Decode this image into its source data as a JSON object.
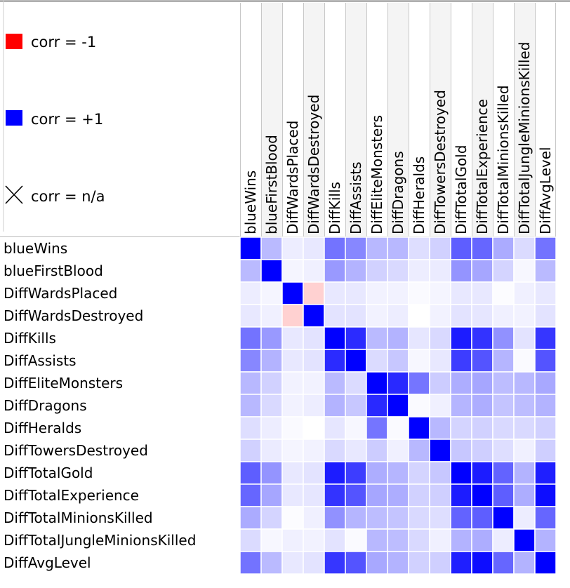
{
  "legend": {
    "items": [
      {
        "label": "corr = -1",
        "color": "#ff0000",
        "icon": "red-square-icon"
      },
      {
        "label": "corr = +1",
        "color": "#0000ff",
        "icon": "blue-square-icon"
      },
      {
        "label": "corr = n/a",
        "color": "#000000",
        "icon": "cross-icon"
      }
    ]
  },
  "chart_data": {
    "type": "heatmap",
    "variables": [
      "blueWins",
      "blueFirstBlood",
      "DiffWardsPlaced",
      "DiffWardsDestroyed",
      "DiffKills",
      "DiffAssists",
      "DiffEliteMonsters",
      "DiffDragons",
      "DiffHeralds",
      "DiffTowersDestroyed",
      "DiffTotalGold",
      "DiffTotalExperience",
      "DiffTotalMinionsKilled",
      "DiffTotalJungleMinionsKilled",
      "DiffAvgLevel"
    ],
    "color_scale": {
      "negative": "#ff0000",
      "zero": "#ffffff",
      "positive": "#0000ff",
      "min": -1,
      "max": 1
    },
    "matrix": [
      [
        1.0,
        0.27,
        0.07,
        0.09,
        0.55,
        0.47,
        0.28,
        0.28,
        0.13,
        0.18,
        0.63,
        0.6,
        0.33,
        0.14,
        0.55
      ],
      [
        0.27,
        1.0,
        0.04,
        0.06,
        0.4,
        0.3,
        0.18,
        0.15,
        0.07,
        0.08,
        0.42,
        0.35,
        0.17,
        0.03,
        0.27
      ],
      [
        0.07,
        0.04,
        1.0,
        -0.18,
        0.09,
        0.09,
        0.05,
        0.05,
        0.02,
        0.04,
        0.09,
        0.09,
        0.01,
        0.06,
        0.09
      ],
      [
        0.09,
        0.06,
        -0.18,
        1.0,
        0.11,
        0.11,
        0.05,
        0.07,
        0.0,
        0.05,
        0.11,
        0.1,
        0.06,
        0.05,
        0.11
      ],
      [
        0.55,
        0.4,
        0.09,
        0.11,
        1.0,
        0.83,
        0.27,
        0.3,
        0.1,
        0.15,
        0.89,
        0.8,
        0.43,
        0.11,
        0.79
      ],
      [
        0.47,
        0.3,
        0.09,
        0.11,
        0.83,
        1.0,
        0.14,
        0.22,
        0.03,
        0.09,
        0.76,
        0.67,
        0.29,
        0.02,
        0.67
      ],
      [
        0.28,
        0.18,
        0.05,
        0.05,
        0.27,
        0.14,
        1.0,
        0.84,
        0.54,
        0.2,
        0.32,
        0.35,
        0.26,
        0.28,
        0.34
      ],
      [
        0.28,
        0.15,
        0.05,
        0.07,
        0.3,
        0.22,
        0.84,
        1.0,
        0.02,
        0.06,
        0.29,
        0.32,
        0.23,
        0.26,
        0.3
      ],
      [
        0.13,
        0.07,
        0.02,
        0.0,
        0.1,
        0.03,
        0.54,
        0.02,
        1.0,
        0.28,
        0.17,
        0.18,
        0.15,
        0.15,
        0.18
      ],
      [
        0.18,
        0.08,
        0.04,
        0.05,
        0.15,
        0.09,
        0.2,
        0.06,
        0.28,
        1.0,
        0.22,
        0.19,
        0.13,
        0.06,
        0.19
      ],
      [
        0.63,
        0.42,
        0.09,
        0.11,
        0.89,
        0.76,
        0.32,
        0.29,
        0.17,
        0.22,
        1.0,
        0.89,
        0.61,
        0.3,
        0.88
      ],
      [
        0.6,
        0.35,
        0.09,
        0.1,
        0.8,
        0.67,
        0.35,
        0.32,
        0.18,
        0.19,
        0.89,
        1.0,
        0.63,
        0.32,
        0.95
      ],
      [
        0.33,
        0.17,
        0.01,
        0.06,
        0.43,
        0.29,
        0.26,
        0.23,
        0.15,
        0.13,
        0.61,
        0.63,
        1.0,
        0.07,
        0.6
      ],
      [
        0.14,
        0.03,
        0.06,
        0.05,
        0.11,
        0.02,
        0.28,
        0.26,
        0.15,
        0.06,
        0.3,
        0.32,
        0.07,
        1.0,
        0.3
      ],
      [
        0.55,
        0.27,
        0.09,
        0.11,
        0.79,
        0.67,
        0.34,
        0.3,
        0.18,
        0.19,
        0.88,
        0.95,
        0.6,
        0.3,
        1.0
      ]
    ]
  }
}
